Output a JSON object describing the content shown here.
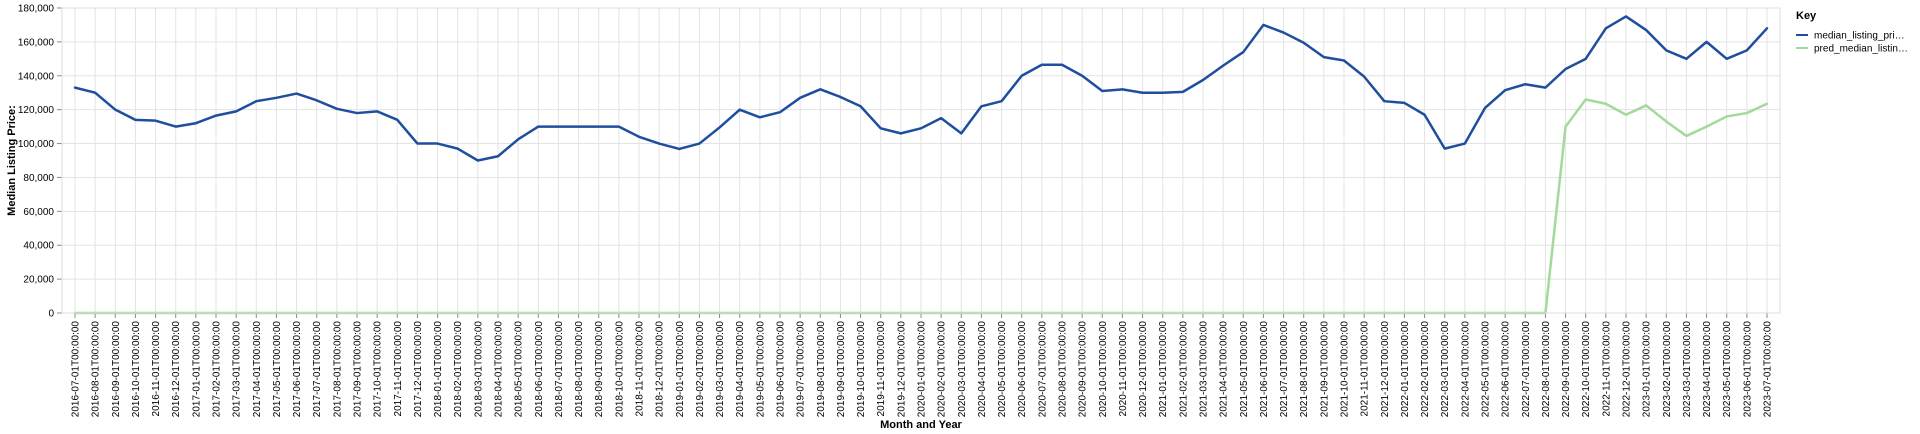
{
  "chart_data": {
    "type": "line",
    "xlabel": "Month and Year",
    "ylabel": "Median Listing Price:",
    "ylim": [
      0,
      180000
    ],
    "yticks": [
      0,
      20000,
      40000,
      60000,
      80000,
      100000,
      120000,
      140000,
      160000,
      180000
    ],
    "ytick_labels": [
      "0",
      "20,000",
      "40,000",
      "60,000",
      "80,000",
      "100,000",
      "120,000",
      "140,000",
      "160,000",
      "180,000"
    ],
    "grid": true,
    "legend_title": "Key",
    "legend_position": "right",
    "x": [
      "2016-07-01T00:00:00",
      "2016-08-01T00:00:00",
      "2016-09-01T00:00:00",
      "2016-10-01T00:00:00",
      "2016-11-01T00:00:00",
      "2016-12-01T00:00:00",
      "2017-01-01T00:00:00",
      "2017-02-01T00:00:00",
      "2017-03-01T00:00:00",
      "2017-04-01T00:00:00",
      "2017-05-01T00:00:00",
      "2017-06-01T00:00:00",
      "2017-07-01T00:00:00",
      "2017-08-01T00:00:00",
      "2017-09-01T00:00:00",
      "2017-10-01T00:00:00",
      "2017-11-01T00:00:00",
      "2017-12-01T00:00:00",
      "2018-01-01T00:00:00",
      "2018-02-01T00:00:00",
      "2018-03-01T00:00:00",
      "2018-04-01T00:00:00",
      "2018-05-01T00:00:00",
      "2018-06-01T00:00:00",
      "2018-07-01T00:00:00",
      "2018-08-01T00:00:00",
      "2018-09-01T00:00:00",
      "2018-10-01T00:00:00",
      "2018-11-01T00:00:00",
      "2018-12-01T00:00:00",
      "2019-01-01T00:00:00",
      "2019-02-01T00:00:00",
      "2019-03-01T00:00:00",
      "2019-04-01T00:00:00",
      "2019-05-01T00:00:00",
      "2019-06-01T00:00:00",
      "2019-07-01T00:00:00",
      "2019-08-01T00:00:00",
      "2019-09-01T00:00:00",
      "2019-10-01T00:00:00",
      "2019-11-01T00:00:00",
      "2019-12-01T00:00:00",
      "2020-01-01T00:00:00",
      "2020-02-01T00:00:00",
      "2020-03-01T00:00:00",
      "2020-04-01T00:00:00",
      "2020-05-01T00:00:00",
      "2020-06-01T00:00:00",
      "2020-07-01T00:00:00",
      "2020-08-01T00:00:00",
      "2020-09-01T00:00:00",
      "2020-10-01T00:00:00",
      "2020-11-01T00:00:00",
      "2020-12-01T00:00:00",
      "2021-01-01T00:00:00",
      "2021-02-01T00:00:00",
      "2021-03-01T00:00:00",
      "2021-04-01T00:00:00",
      "2021-05-01T00:00:00",
      "2021-06-01T00:00:00",
      "2021-07-01T00:00:00",
      "2021-08-01T00:00:00",
      "2021-09-01T00:00:00",
      "2021-10-01T00:00:00",
      "2021-11-01T00:00:00",
      "2021-12-01T00:00:00",
      "2022-01-01T00:00:00",
      "2022-02-01T00:00:00",
      "2022-03-01T00:00:00",
      "2022-04-01T00:00:00",
      "2022-05-01T00:00:00",
      "2022-06-01T00:00:00",
      "2022-07-01T00:00:00",
      "2022-08-01T00:00:00",
      "2022-09-01T00:00:00",
      "2022-10-01T00:00:00",
      "2022-11-01T00:00:00",
      "2022-12-01T00:00:00",
      "2023-01-01T00:00:00",
      "2023-02-01T00:00:00",
      "2023-03-01T00:00:00",
      "2023-04-01T00:00:00",
      "2023-05-01T00:00:00",
      "2023-06-01T00:00:00",
      "2023-07-01T00:00:00"
    ],
    "series": [
      {
        "name": "median_listing_pri…",
        "color": "#1f4e9e",
        "values": [
          133000,
          130000,
          120000,
          114000,
          113500,
          110000,
          112000,
          116500,
          119000,
          125000,
          127000,
          129500,
          125500,
          120500,
          118000,
          119000,
          114000,
          100000,
          100000,
          97000,
          90000,
          92500,
          102500,
          110000,
          110000,
          110000,
          110000,
          110000,
          104000,
          100000,
          96800,
          100000,
          109500,
          120000,
          115500,
          118500,
          127000,
          132000,
          127500,
          122000,
          109000,
          106000,
          109000,
          115000,
          106000,
          122000,
          125000,
          140000,
          146500,
          146500,
          140000,
          131000,
          132000,
          130000,
          130000,
          130500,
          137500,
          146000,
          154000,
          170000,
          165500,
          159500,
          151000,
          149000,
          139500,
          125000,
          124000,
          117000,
          97000,
          100000,
          121000,
          131500,
          135000,
          133000,
          144000,
          150000,
          168000,
          175000,
          167000,
          155000,
          150000,
          160000,
          150000,
          155000,
          168000
        ]
      },
      {
        "name": "pred_median_listin…",
        "color": "#a3d99b",
        "values": [
          0,
          0,
          0,
          0,
          0,
          0,
          0,
          0,
          0,
          0,
          0,
          0,
          0,
          0,
          0,
          0,
          0,
          0,
          0,
          0,
          0,
          0,
          0,
          0,
          0,
          0,
          0,
          0,
          0,
          0,
          0,
          0,
          0,
          0,
          0,
          0,
          0,
          0,
          0,
          0,
          0,
          0,
          0,
          0,
          0,
          0,
          0,
          0,
          0,
          0,
          0,
          0,
          0,
          0,
          0,
          0,
          0,
          0,
          0,
          0,
          0,
          0,
          0,
          0,
          0,
          0,
          0,
          0,
          0,
          0,
          0,
          0,
          0,
          0,
          110000,
          126000,
          123500,
          117000,
          122500,
          113000,
          104500,
          110000,
          116000,
          118000,
          123500
        ]
      }
    ]
  }
}
